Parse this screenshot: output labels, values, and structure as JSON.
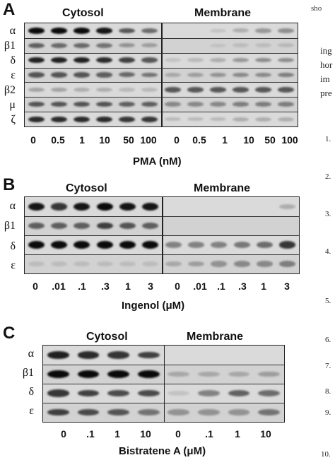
{
  "panels": [
    {
      "letter": "A",
      "cytosol_label": "Cytosol",
      "membrane_label": "Membrane",
      "isoforms": [
        "α",
        "β1",
        "δ",
        "ε",
        "β2",
        "μ",
        "ζ"
      ],
      "lanes": [
        "0",
        "0.5",
        "1",
        "10",
        "50",
        "100",
        "0",
        "0.5",
        "1",
        "10",
        "50",
        "100"
      ],
      "axis_label": "PMA (nM)"
    },
    {
      "letter": "B",
      "cytosol_label": "Cytosol",
      "membrane_label": "Membrane",
      "isoforms": [
        "α",
        "β1",
        "δ",
        "ε"
      ],
      "lanes": [
        "0",
        ".01",
        ".1",
        ".3",
        "1",
        "3",
        "0",
        ".01",
        ".1",
        ".3",
        "1",
        "3"
      ],
      "axis_label": "Ingenol (μM)"
    },
    {
      "letter": "C",
      "cytosol_label": "Cytosol",
      "membrane_label": "Membrane",
      "isoforms": [
        "α",
        "β1",
        "δ",
        "ε"
      ],
      "lanes": [
        "0",
        ".1",
        "1",
        "10",
        "0",
        ".1",
        "1",
        "10"
      ],
      "axis_label": "Bistratene A (μM)"
    }
  ],
  "margin_text": {
    "top": "sho",
    "lines": [
      "ing",
      "hor",
      "im",
      "pre"
    ],
    "ref_numbers": [
      "1.",
      "2.",
      "3.",
      "4.",
      "5.",
      "6.",
      "7.",
      "8.",
      "9.",
      "10."
    ]
  }
}
